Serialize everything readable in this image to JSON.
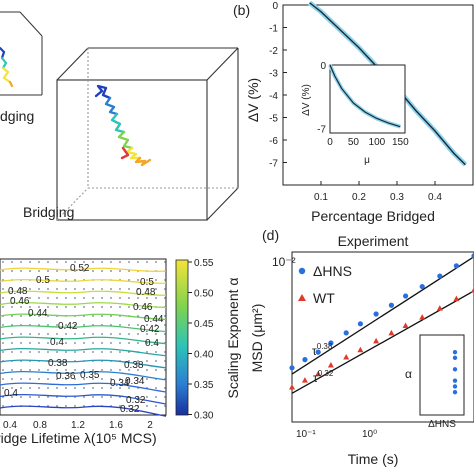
{
  "panels": {
    "a": {
      "label_top": "dging",
      "label_bottom": "Bridging",
      "trajectory_colors": [
        "#1f3fbf",
        "#2a7fd4",
        "#2ec4b6",
        "#7fd34e",
        "#f3e33a",
        "#f5a623",
        "#e03a3a"
      ]
    },
    "b": {
      "tag": "(b)"
    },
    "c": {
      "xticks": [
        "0.4",
        "0.8",
        "1.2",
        "1.6",
        "2"
      ],
      "xlabel": "ridge Lifetime λ(10⁵ MCS)",
      "colorbar_ticks": [
        "0.55",
        "0.50",
        "0.45",
        "0.40",
        "0.35",
        "0.30"
      ],
      "colorbar_label": "Scaling Exponent α",
      "contour_labels": [
        "0.52",
        "0.5",
        "0.5",
        "0.48",
        "0.48",
        "0.46",
        "0.46",
        "0.44",
        "0.44",
        "0.42",
        "0.42",
        "0.4",
        "0.4",
        "0.38",
        "0.38",
        "0.36",
        "0.35",
        "0.34",
        "0.34",
        "0.32",
        "0.32",
        "0.4"
      ]
    },
    "d": {
      "tag": "(d)",
      "title": "Experiment",
      "yexp": "10⁻²",
      "ylabel": "MSD (μm²)",
      "xlabel": "Time (s)",
      "xtick_left": "10⁻¹",
      "xtick_mid": "10⁰",
      "legend": [
        "ΔHNS",
        "WT"
      ],
      "annot1": "τ",
      "annot1_exp": "0.38",
      "annot2": "τ",
      "annot2_exp": "0.32",
      "inset_ylabel": "α",
      "inset_xlabel": "ΔHNS"
    }
  },
  "chart_data": [
    {
      "type": "line",
      "panel": "b",
      "xlabel": "Percentage Bridged",
      "ylabel": "ΔV (%)",
      "xlim": [
        0,
        0.5
      ],
      "ylim": [
        -8,
        0
      ],
      "xticks": [
        0.1,
        0.2,
        0.3,
        0.4
      ],
      "yticks": [
        0,
        -1,
        -2,
        -3,
        -4,
        -5,
        -6,
        -7
      ],
      "x": [
        0.07,
        0.1,
        0.15,
        0.2,
        0.25,
        0.3,
        0.35,
        0.4,
        0.45,
        0.48
      ],
      "y": [
        0.1,
        -0.3,
        -1.1,
        -1.9,
        -2.8,
        -3.7,
        -4.7,
        -5.6,
        -6.6,
        -7.1
      ],
      "inset": {
        "xlabel": "μ",
        "ylabel": "ΔV (%)",
        "xticks": [
          0,
          50,
          100,
          150
        ],
        "yticks": [
          0,
          -7
        ],
        "x": [
          0,
          10,
          25,
          50,
          75,
          100,
          125,
          150
        ],
        "y": [
          0,
          -1.2,
          -2.6,
          -4.2,
          -5.2,
          -5.9,
          -6.4,
          -6.8
        ]
      }
    },
    {
      "type": "scatter",
      "panel": "d",
      "xscale": "log",
      "yscale": "log",
      "xlim": [
        0.1,
        4
      ],
      "ylim": [
        0.0016,
        0.0115
      ],
      "series": [
        {
          "name": "ΔHNS",
          "marker": "circle",
          "color": "#2a6fe0",
          "x": [
            0.1,
            0.13,
            0.17,
            0.22,
            0.3,
            0.4,
            0.55,
            0.75,
            1.0,
            1.4,
            2.0,
            2.8,
            4.0
          ],
          "y": [
            0.003,
            0.0033,
            0.0036,
            0.004,
            0.0045,
            0.005,
            0.0056,
            0.0062,
            0.0069,
            0.0077,
            0.0087,
            0.0098,
            0.011
          ]
        },
        {
          "name": "WT",
          "marker": "triangle",
          "color": "#e03a2a",
          "x": [
            0.1,
            0.13,
            0.17,
            0.22,
            0.3,
            0.4,
            0.55,
            0.75,
            1.0,
            1.4,
            2.0,
            2.8,
            4.0
          ],
          "y": [
            0.0024,
            0.0026,
            0.0028,
            0.0031,
            0.0034,
            0.0037,
            0.0041,
            0.0045,
            0.0049,
            0.0054,
            0.006,
            0.0067,
            0.0074
          ]
        }
      ],
      "inset": {
        "values": [
          0.41,
          0.4,
          0.38,
          0.36,
          0.35,
          0.34
        ]
      }
    },
    {
      "type": "heatmap",
      "panel": "c",
      "xticks": [
        0.4,
        0.8,
        1.2,
        1.6,
        2
      ],
      "colorbar_range": [
        0.3,
        0.55
      ]
    }
  ]
}
